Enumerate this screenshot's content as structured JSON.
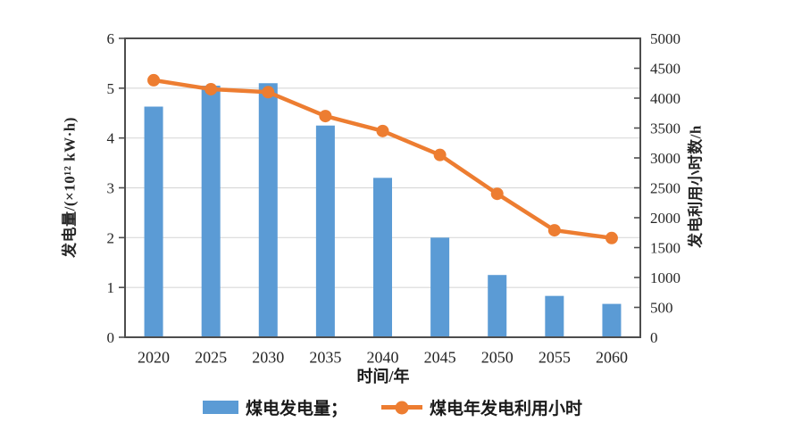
{
  "chart_data": {
    "type": "combo-bar-line",
    "title": "",
    "categories": [
      "2020",
      "2025",
      "2030",
      "2035",
      "2040",
      "2045",
      "2050",
      "2055",
      "2060"
    ],
    "series": [
      {
        "name": "煤电发电量",
        "legend_label": "煤电发电量；",
        "type": "bar",
        "axis": "left",
        "color": "#5B9BD5",
        "values": [
          4.63,
          5.05,
          5.1,
          4.25,
          3.2,
          2.0,
          1.25,
          0.83,
          0.67
        ]
      },
      {
        "name": "煤电年发电利用小时",
        "legend_label": "煤电年发电利用小时",
        "type": "line",
        "axis": "right",
        "color": "#ED7D31",
        "values": [
          4300,
          4150,
          4100,
          3700,
          3450,
          3050,
          2400,
          1790,
          1660
        ]
      }
    ],
    "xlabel": "时间/年",
    "ylabel_left": "发电量/(×10¹² kW·h)",
    "ylabel_right": "发电利用小时数/h",
    "y_left_axis": {
      "min": 0,
      "max": 6,
      "tick_step": 1
    },
    "y_right_axis": {
      "min": 0,
      "max": 5000,
      "tick_step": 500
    },
    "y_left_tick_labels": [
      "0",
      "1",
      "2",
      "3",
      "4",
      "5",
      "6"
    ],
    "y_right_tick_labels": [
      "0",
      "500",
      "1000",
      "1500",
      "2000",
      "2500",
      "3000",
      "3500",
      "4000",
      "4500",
      "5000"
    ],
    "grid": "horizontal gridlines at left-axis integers 1-5",
    "legend_position": "bottom-center"
  },
  "colors": {
    "bar": "#5B9BD5",
    "line": "#ED7D31",
    "axis": "#4d4d4d",
    "gridline": "#d9d9d9",
    "tick_text": "#262626",
    "background": "#ffffff"
  }
}
